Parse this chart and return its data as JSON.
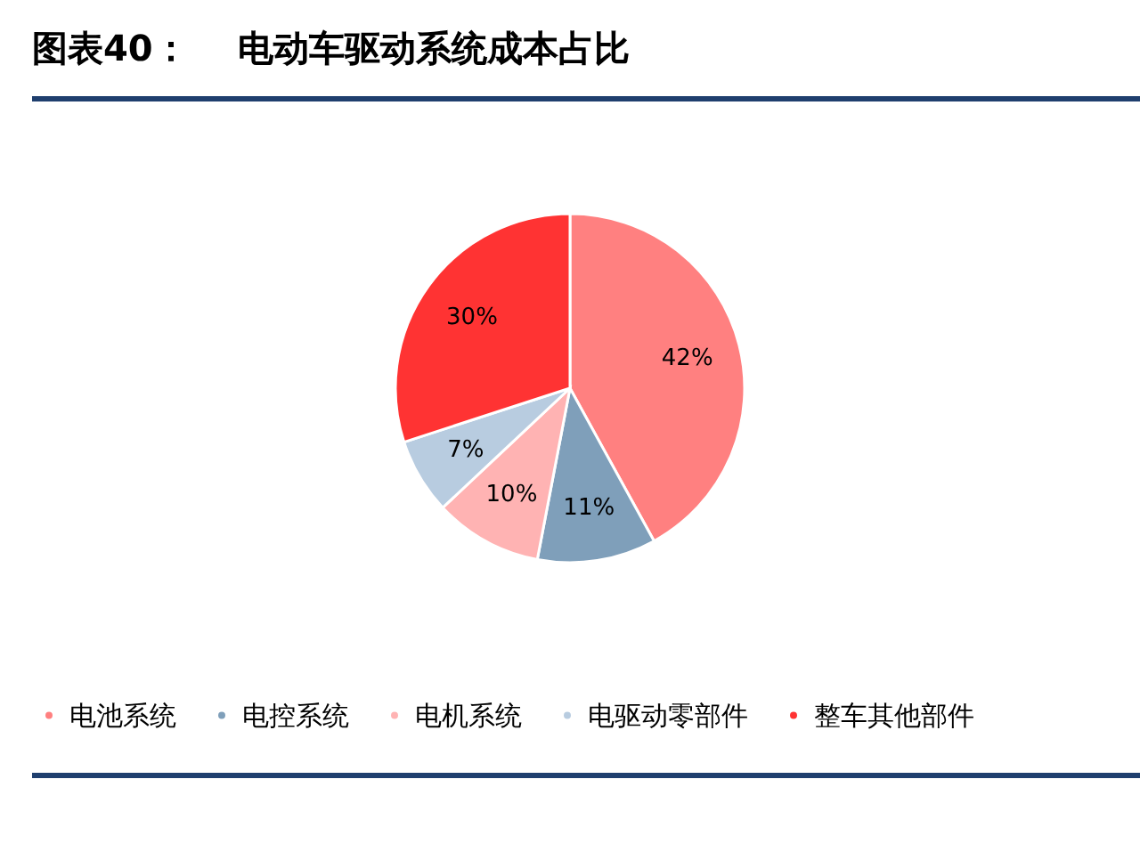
{
  "chart_data": {
    "type": "pie",
    "title": "图表40：    电动车驱动系统成本占比",
    "categories": [
      "电池系统",
      "电控系统",
      "电机系统",
      "电驱动零部件",
      "整车其他部件"
    ],
    "values": [
      42,
      11,
      10,
      7,
      30
    ],
    "colors": [
      "#ff8080",
      "#7f9fba",
      "#ffb3b3",
      "#b8cce0",
      "#ff3333"
    ],
    "value_labels": [
      "42%",
      "11%",
      "10%",
      "7%",
      "30%"
    ],
    "legend": "bottom"
  }
}
